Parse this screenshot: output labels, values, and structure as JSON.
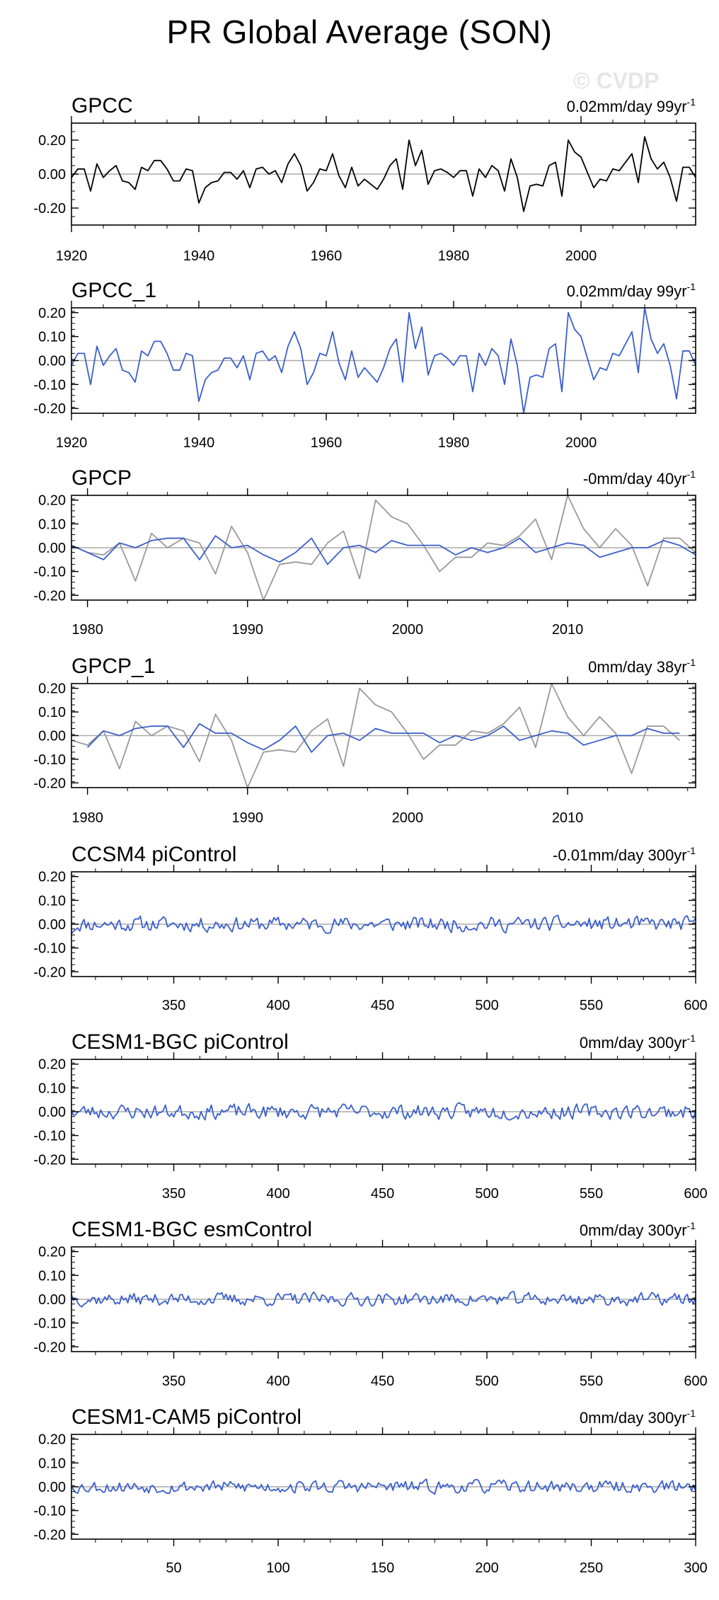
{
  "title": "PR Global Average (SON)",
  "watermark": "© CVDP",
  "colors": {
    "obs": "#000000",
    "model": "#3a5fcd",
    "reference": "#999999",
    "zero": "#aaaaaa"
  },
  "chart_data": [
    {
      "type": "line",
      "title": "GPCC",
      "trend": "0.02mm/day 99yr",
      "trend_sup": "-1",
      "ylim": [
        -0.3,
        0.3
      ],
      "yticks": [
        0.2,
        0.0,
        -0.2
      ],
      "ytick_labels": [
        "0.20",
        "0.00",
        "-0.20"
      ],
      "xlim": [
        1920,
        2018
      ],
      "xticks": [
        1920,
        1940,
        1960,
        1980,
        2000
      ],
      "series": [
        {
          "color": "obs",
          "x_start": 1920,
          "values": [
            -0.02,
            0.03,
            0.03,
            -0.1,
            0.06,
            -0.02,
            0.02,
            0.05,
            -0.04,
            -0.05,
            -0.09,
            0.04,
            0.02,
            0.08,
            0.08,
            0.03,
            -0.04,
            -0.04,
            0.03,
            0.02,
            -0.17,
            -0.08,
            -0.05,
            -0.04,
            0.01,
            0.01,
            -0.03,
            0.02,
            -0.08,
            0.03,
            0.04,
            0.0,
            0.02,
            -0.05,
            0.06,
            0.12,
            0.05,
            -0.1,
            -0.05,
            0.03,
            0.02,
            0.12,
            -0.01,
            -0.08,
            0.04,
            -0.07,
            -0.03,
            -0.06,
            -0.09,
            -0.03,
            0.05,
            0.09,
            -0.09,
            0.2,
            0.05,
            0.14,
            -0.06,
            0.02,
            0.03,
            0.01,
            -0.02,
            0.02,
            0.02,
            -0.13,
            0.03,
            -0.02,
            0.05,
            0.02,
            -0.1,
            0.09,
            -0.02,
            -0.22,
            -0.07,
            -0.06,
            -0.07,
            0.05,
            0.07,
            -0.13,
            0.2,
            0.13,
            0.1,
            0.01,
            -0.08,
            -0.03,
            -0.04,
            0.03,
            0.02,
            0.07,
            0.12,
            -0.05,
            0.22,
            0.09,
            0.03,
            0.07,
            -0.02,
            -0.16,
            0.04,
            0.04,
            -0.02
          ]
        }
      ]
    },
    {
      "type": "line",
      "title": "GPCC_1",
      "trend": "0.02mm/day 99yr",
      "trend_sup": "-1",
      "ylim": [
        -0.22,
        0.22
      ],
      "yticks": [
        0.2,
        0.1,
        0.0,
        -0.1,
        -0.2
      ],
      "ytick_labels": [
        "0.20",
        "0.10",
        "0.00",
        "-0.10",
        "-0.20"
      ],
      "xlim": [
        1920,
        2018
      ],
      "xticks": [
        1920,
        1940,
        1960,
        1980,
        2000
      ],
      "series": [
        {
          "color": "model",
          "x_start": 1920,
          "values": [
            -0.02,
            0.03,
            0.03,
            -0.1,
            0.06,
            -0.02,
            0.02,
            0.05,
            -0.04,
            -0.05,
            -0.09,
            0.04,
            0.02,
            0.08,
            0.08,
            0.03,
            -0.04,
            -0.04,
            0.03,
            0.02,
            -0.17,
            -0.08,
            -0.05,
            -0.04,
            0.01,
            0.01,
            -0.03,
            0.02,
            -0.08,
            0.03,
            0.04,
            0.0,
            0.02,
            -0.05,
            0.06,
            0.12,
            0.05,
            -0.1,
            -0.05,
            0.03,
            0.02,
            0.12,
            -0.01,
            -0.08,
            0.04,
            -0.07,
            -0.03,
            -0.06,
            -0.09,
            -0.03,
            0.05,
            0.09,
            -0.09,
            0.2,
            0.05,
            0.14,
            -0.06,
            0.02,
            0.03,
            0.01,
            -0.02,
            0.02,
            0.02,
            -0.13,
            0.03,
            -0.02,
            0.05,
            0.02,
            -0.1,
            0.09,
            -0.02,
            -0.22,
            -0.07,
            -0.06,
            -0.07,
            0.05,
            0.07,
            -0.13,
            0.2,
            0.13,
            0.1,
            0.01,
            -0.08,
            -0.03,
            -0.04,
            0.03,
            0.02,
            0.07,
            0.12,
            -0.05,
            0.22,
            0.09,
            0.03,
            0.07,
            -0.02,
            -0.16,
            0.04,
            0.04,
            -0.02
          ]
        }
      ]
    },
    {
      "type": "line",
      "title": "GPCP",
      "trend": "-0mm/day 40yr",
      "trend_sup": "-1",
      "ylim": [
        -0.22,
        0.22
      ],
      "yticks": [
        0.2,
        0.1,
        0.0,
        -0.1,
        -0.2
      ],
      "ytick_labels": [
        "0.20",
        "0.10",
        "0.00",
        "-0.10",
        "-0.20"
      ],
      "xlim": [
        1979,
        2018
      ],
      "xticks": [
        1980,
        1990,
        2000,
        2010
      ],
      "series": [
        {
          "color": "reference",
          "x_start": 1979,
          "values": [
            0.01,
            -0.02,
            -0.03,
            0.02,
            -0.14,
            0.06,
            0.0,
            0.04,
            0.02,
            -0.11,
            0.09,
            -0.02,
            -0.22,
            -0.07,
            -0.06,
            -0.07,
            0.02,
            0.07,
            -0.13,
            0.2,
            0.13,
            0.1,
            0.01,
            -0.1,
            -0.04,
            -0.04,
            0.02,
            0.01,
            0.05,
            0.12,
            -0.05,
            0.22,
            0.08,
            0.0,
            0.08,
            0.01,
            -0.16,
            0.04,
            0.04,
            -0.02
          ]
        },
        {
          "color": "model",
          "x_start": 1979,
          "values": [
            0.01,
            -0.02,
            -0.05,
            0.02,
            0.0,
            0.03,
            0.04,
            0.04,
            -0.05,
            0.05,
            0.0,
            0.01,
            -0.03,
            -0.06,
            -0.02,
            0.04,
            -0.07,
            0.0,
            0.01,
            -0.02,
            0.03,
            0.01,
            0.01,
            0.01,
            -0.03,
            0.0,
            -0.02,
            0.0,
            0.04,
            -0.02,
            0.0,
            0.02,
            0.01,
            -0.04,
            -0.02,
            0.0,
            0.0,
            0.03,
            0.01,
            -0.03
          ]
        }
      ]
    },
    {
      "type": "line",
      "title": "GPCP_1",
      "trend": "0mm/day 38yr",
      "trend_sup": "-1",
      "ylim": [
        -0.22,
        0.22
      ],
      "yticks": [
        0.2,
        0.1,
        0.0,
        -0.1,
        -0.2
      ],
      "ytick_labels": [
        "0.20",
        "0.10",
        "0.00",
        "-0.10",
        "-0.20"
      ],
      "xlim": [
        1979,
        2018
      ],
      "xticks": [
        1980,
        1990,
        2000,
        2010
      ],
      "series": [
        {
          "color": "reference",
          "x_start": 1979,
          "values": [
            -0.02,
            -0.04,
            0.02,
            -0.14,
            0.06,
            0.0,
            0.04,
            0.02,
            -0.11,
            0.09,
            -0.02,
            -0.22,
            -0.07,
            -0.06,
            -0.07,
            0.02,
            0.07,
            -0.13,
            0.2,
            0.13,
            0.1,
            0.01,
            -0.1,
            -0.04,
            -0.04,
            0.02,
            0.01,
            0.05,
            0.12,
            -0.05,
            0.22,
            0.08,
            0.0,
            0.08,
            0.01,
            -0.16,
            0.04,
            0.04,
            -0.02
          ]
        },
        {
          "color": "model",
          "x_start": 1980,
          "values": [
            -0.05,
            0.02,
            0.0,
            0.03,
            0.04,
            0.04,
            -0.05,
            0.05,
            0.01,
            0.01,
            -0.03,
            -0.06,
            -0.02,
            0.04,
            -0.07,
            0.0,
            0.01,
            -0.02,
            0.03,
            0.01,
            0.01,
            0.01,
            -0.03,
            0.0,
            -0.02,
            0.0,
            0.04,
            -0.02,
            0.0,
            0.02,
            0.01,
            -0.04,
            -0.02,
            0.0,
            0.0,
            0.03,
            0.01,
            0.01
          ]
        }
      ]
    },
    {
      "type": "line",
      "title": "CCSM4 piControl",
      "trend": "-0.01mm/day 300yr",
      "trend_sup": "-1",
      "ylim": [
        -0.22,
        0.22
      ],
      "yticks": [
        0.2,
        0.1,
        0.0,
        -0.1,
        -0.2
      ],
      "ytick_labels": [
        "0.20",
        "0.10",
        "0.00",
        "-0.10",
        "-0.20"
      ],
      "xlim": [
        301,
        600
      ],
      "xticks": [
        350,
        400,
        450,
        500,
        550,
        600
      ],
      "series": [
        {
          "color": "model",
          "x_start": 301,
          "amplitude": 0.028,
          "seed": 11,
          "n": 300,
          "start_value": -0.04
        }
      ]
    },
    {
      "type": "line",
      "title": "CESM1-BGC piControl",
      "trend": "0mm/day 300yr",
      "trend_sup": "-1",
      "ylim": [
        -0.22,
        0.22
      ],
      "yticks": [
        0.2,
        0.1,
        0.0,
        -0.1,
        -0.2
      ],
      "ytick_labels": [
        "0.20",
        "0.10",
        "0.00",
        "-0.10",
        "-0.20"
      ],
      "xlim": [
        301,
        600
      ],
      "xticks": [
        350,
        400,
        450,
        500,
        550,
        600
      ],
      "series": [
        {
          "color": "model",
          "x_start": 301,
          "amplitude": 0.028,
          "seed": 23,
          "n": 300,
          "start_value": 0.0
        }
      ]
    },
    {
      "type": "line",
      "title": "CESM1-BGC esmControl",
      "trend": "0mm/day 300yr",
      "trend_sup": "-1",
      "ylim": [
        -0.22,
        0.22
      ],
      "yticks": [
        0.2,
        0.1,
        0.0,
        -0.1,
        -0.2
      ],
      "ytick_labels": [
        "0.20",
        "0.10",
        "0.00",
        "-0.10",
        "-0.20"
      ],
      "xlim": [
        301,
        600
      ],
      "xticks": [
        350,
        400,
        450,
        500,
        550,
        600
      ],
      "series": [
        {
          "color": "model",
          "x_start": 301,
          "amplitude": 0.024,
          "seed": 37,
          "n": 300,
          "start_value": 0.02
        }
      ]
    },
    {
      "type": "line",
      "title": "CESM1-CAM5 piControl",
      "trend": "0mm/day 300yr",
      "trend_sup": "-1",
      "ylim": [
        -0.22,
        0.22
      ],
      "yticks": [
        0.2,
        0.1,
        0.0,
        -0.1,
        -0.2
      ],
      "ytick_labels": [
        "0.20",
        "0.10",
        "0.00",
        "-0.10",
        "-0.20"
      ],
      "xlim": [
        1,
        300
      ],
      "xticks": [
        50,
        100,
        150,
        200,
        250,
        300
      ],
      "series": [
        {
          "color": "model",
          "x_start": 1,
          "amplitude": 0.024,
          "seed": 53,
          "n": 300,
          "start_value": 0.0
        }
      ]
    }
  ]
}
